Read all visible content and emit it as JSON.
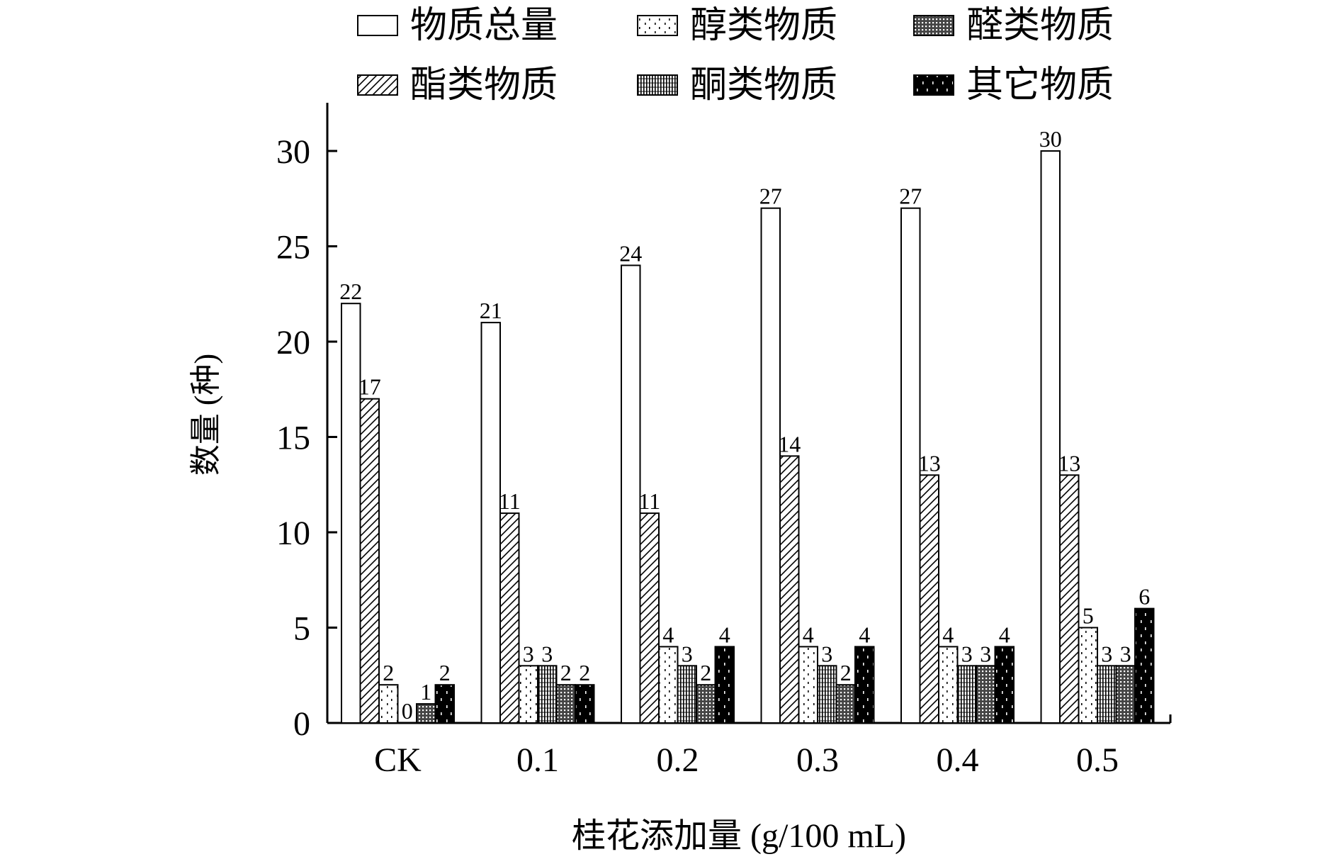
{
  "chart_data": {
    "type": "bar",
    "title": "",
    "xlabel": "桂花添加量 (g/100 mL)",
    "ylabel": "数量 (种)",
    "ylim": [
      0,
      32
    ],
    "yticks": [
      0,
      5,
      10,
      15,
      20,
      25,
      30
    ],
    "categories": [
      "CK",
      "0.1",
      "0.2",
      "0.3",
      "0.4",
      "0.5"
    ],
    "legend_position": "top",
    "series": [
      {
        "name": "物质总量",
        "pattern": "blank",
        "values": [
          22,
          21,
          24,
          27,
          27,
          30
        ]
      },
      {
        "name": "酯类物质",
        "pattern": "diagonal",
        "values": [
          17,
          11,
          11,
          14,
          13,
          13
        ]
      },
      {
        "name": "醇类物质",
        "pattern": "dots",
        "values": [
          2,
          3,
          4,
          4,
          4,
          5
        ]
      },
      {
        "name": "酮类物质",
        "pattern": "vertical",
        "values": [
          0,
          3,
          3,
          3,
          3,
          3
        ]
      },
      {
        "name": "醛类物质",
        "pattern": "cross",
        "values": [
          1,
          2,
          2,
          2,
          3,
          3
        ]
      },
      {
        "name": "其它物质",
        "pattern": "solid",
        "values": [
          2,
          2,
          4,
          4,
          4,
          6
        ]
      }
    ],
    "legend_order": [
      "物质总量",
      "醇类物质",
      "醛类物质",
      "酯类物质",
      "酮类物质",
      "其它物质"
    ],
    "colors": {
      "ink": "#000000",
      "background": "#ffffff"
    }
  }
}
